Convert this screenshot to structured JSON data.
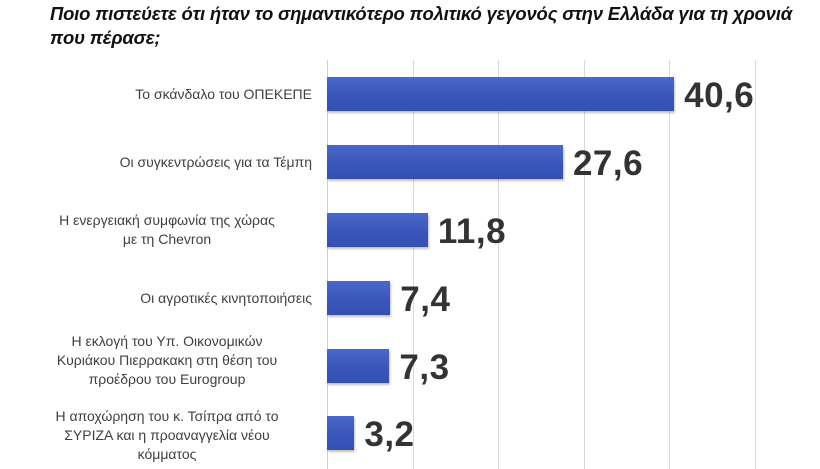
{
  "title": "Ποιο πιστεύετε ότι ήταν το σημαντικότερο πολιτικό γεγονός στην Ελλάδα για τη χρονιά που πέρασε;",
  "colors": {
    "bar": "#3a56bb",
    "value_label": "#333333",
    "category_label": "#404040",
    "gridline": "#d9d9d9"
  },
  "chart_data": {
    "type": "bar",
    "orientation": "horizontal",
    "title": "Ποιο πιστεύετε ότι ήταν το σημαντικότερο πολιτικό γεγονός στην Ελλάδα για τη χρονιά που πέρασε;",
    "xlabel": "",
    "ylabel": "",
    "xlim": [
      0,
      50
    ],
    "grid": true,
    "legend": null,
    "categories": [
      "Το σκάνδαλο του ΟΠΕΚΕΠΕ",
      "Οι συγκεντρώσεις για τα Τέμπη",
      "Η ενεργειακή συμφωνία της χώρας με τη Chevron",
      "Οι αγροτικές κινητοποιήσεις",
      "Η εκλογή του Υπ. Οικονομικών Κυριάκου Πιερρακακη στη θέση του προέδρου του Eurogroup",
      "Η αποχώρηση του κ. Τσίπρα από το ΣΥΡΙΖΑ και η προαναγγελία νέου κόμματος"
    ],
    "values": [
      40.6,
      27.6,
      11.8,
      7.4,
      7.3,
      3.2
    ],
    "value_labels": [
      "40,6",
      "27,6",
      "11,8",
      "7,4",
      "7,3",
      "3,2"
    ]
  },
  "rows": [
    {
      "label_lines": [
        "Το σκάνδαλο του ΟΠΕΚΕΠΕ"
      ],
      "value": 40.6,
      "value_label": "40,6"
    },
    {
      "label_lines": [
        "Οι συγκεντρώσεις για τα Τέμπη"
      ],
      "value": 27.6,
      "value_label": "27,6"
    },
    {
      "label_lines": [
        "Η ενεργειακή συμφωνία της χώρας",
        "με τη Chevron"
      ],
      "value": 11.8,
      "value_label": "11,8"
    },
    {
      "label_lines": [
        "Οι αγροτικές κινητοποιήσεις"
      ],
      "value": 7.4,
      "value_label": "7,4"
    },
    {
      "label_lines": [
        "Η εκλογή του Υπ. Οικονομικών",
        "Κυριάκου Πιερρακακη στη θέση του",
        "προέδρου του Eurogroup"
      ],
      "value": 7.3,
      "value_label": "7,3"
    },
    {
      "label_lines": [
        "Η αποχώρηση του κ. Τσίπρα από το",
        "ΣΥΡΙΖΑ και η προαναγγελία νέου",
        "κόμματος"
      ],
      "value": 3.2,
      "value_label": "3,2"
    }
  ]
}
